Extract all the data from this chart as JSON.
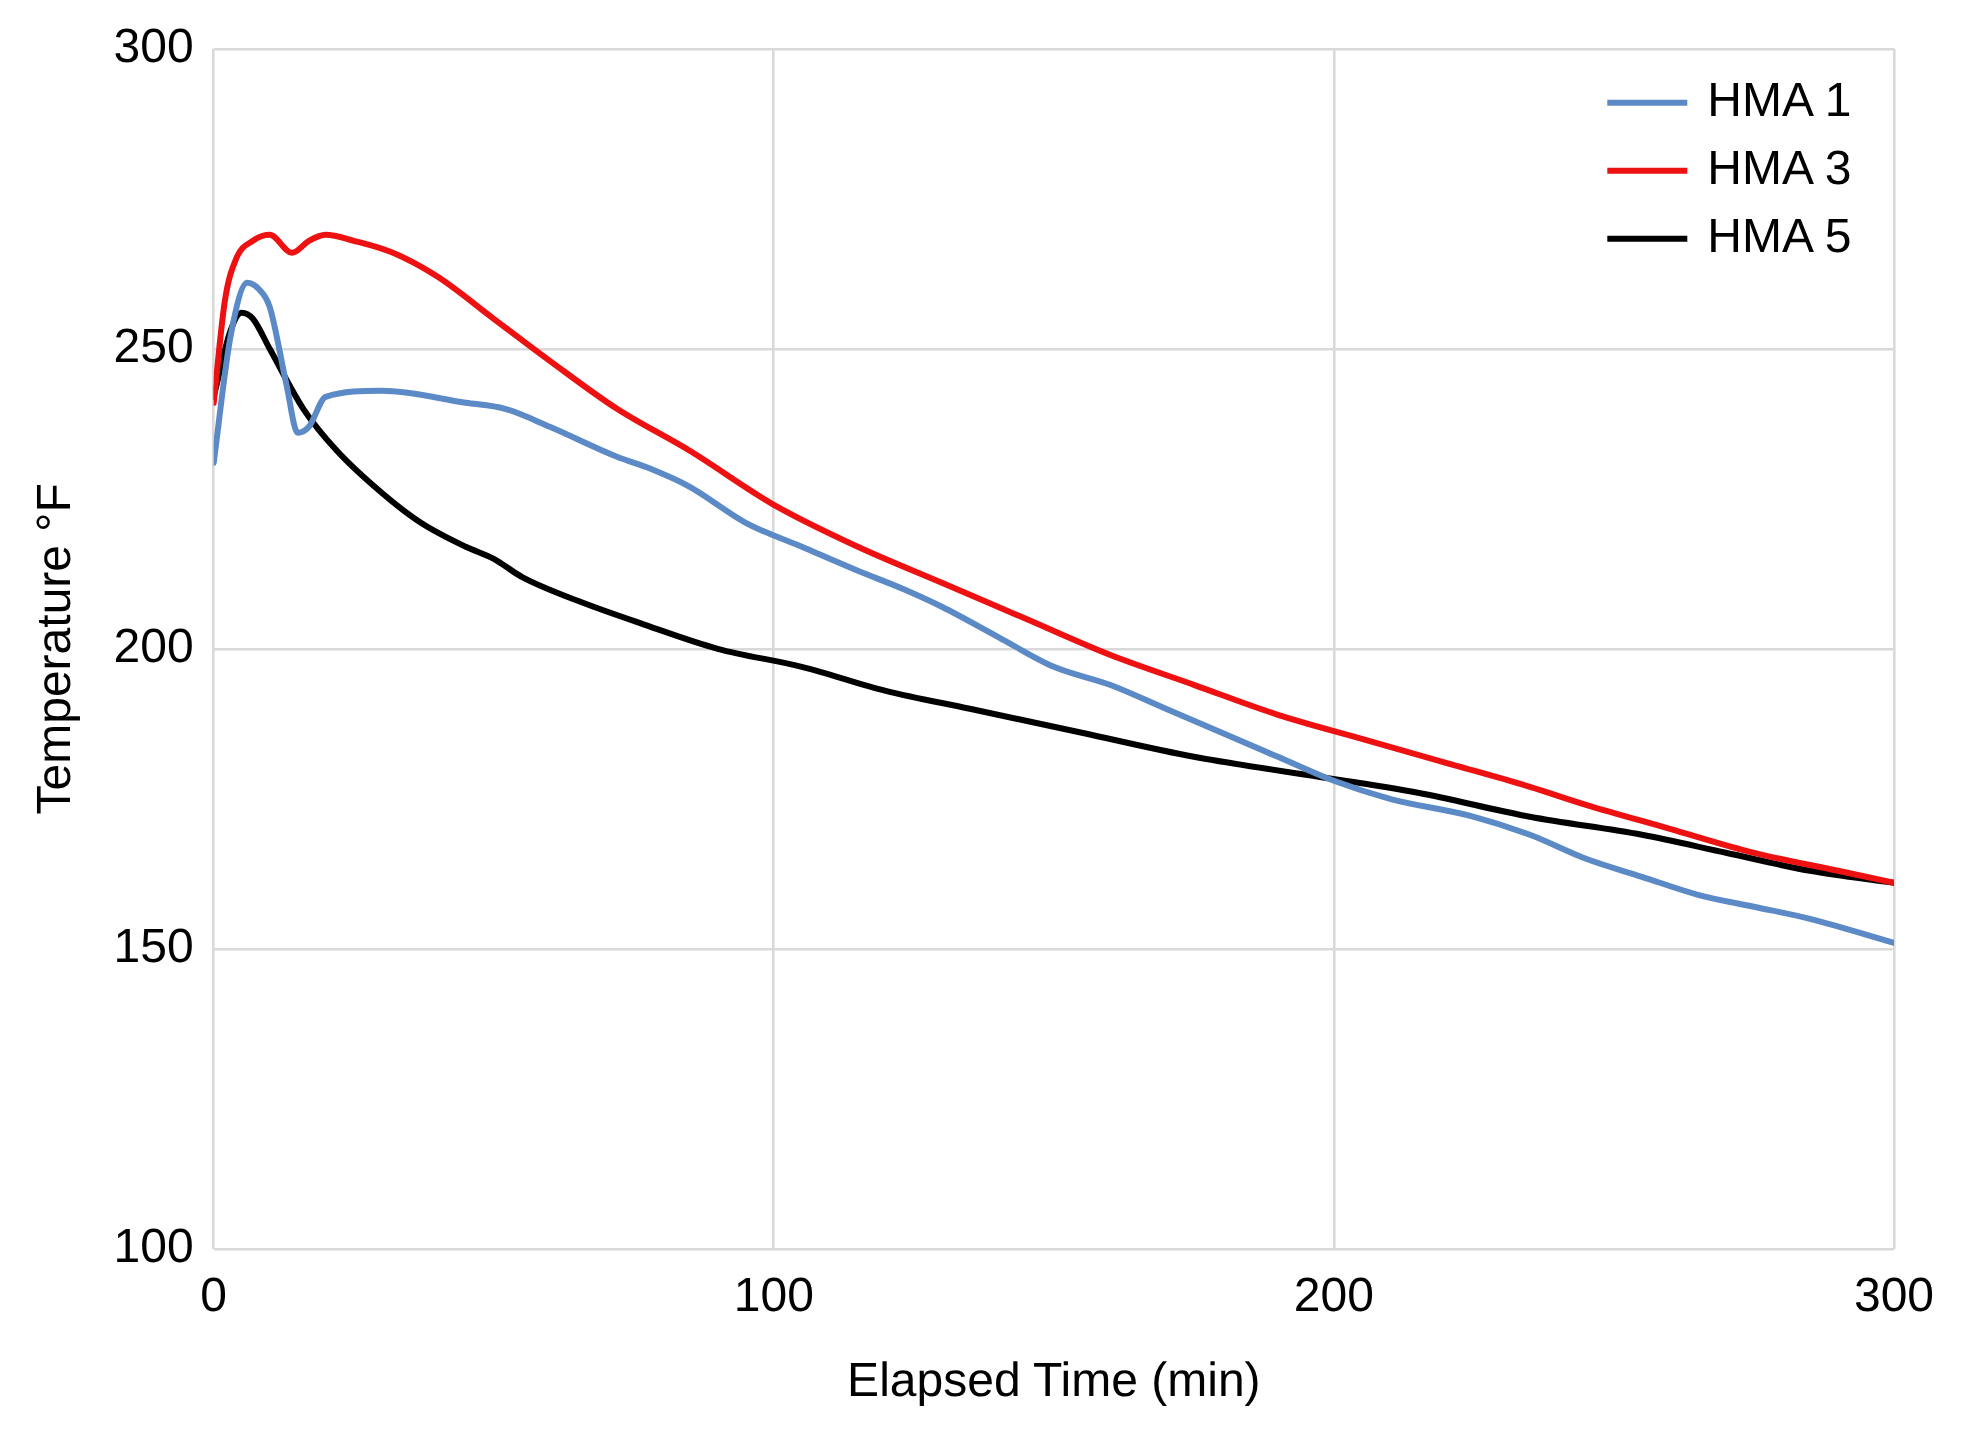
{
  "chart_data": {
    "type": "line",
    "xlabel": "Elapsed Time (min)",
    "ylabel": "Temperature °F",
    "xlim": [
      0,
      300
    ],
    "xticks": [
      0,
      100,
      200,
      300
    ],
    "ylim": [
      100,
      300
    ],
    "yticks": [
      100,
      150,
      200,
      250,
      300
    ],
    "grid": true,
    "legend": "top right",
    "marker": "none",
    "line_style": "solid",
    "series": [
      {
        "name": "HMA 1",
        "color": "#5b8ac6",
        "x": [
          0,
          3,
          6,
          8,
          10,
          13,
          15,
          17,
          20,
          30,
          45,
          52,
          60,
          72,
          78,
          85,
          95,
          105,
          115,
          123,
          130,
          140,
          150,
          160,
          170,
          180,
          190,
          200,
          210,
          225,
          235,
          245,
          255,
          265,
          275,
          285,
          300
        ],
        "values": [
          231,
          252,
          261,
          260,
          257,
          244,
          236,
          237,
          242,
          243,
          241,
          240,
          237,
          232,
          230,
          227,
          221,
          217,
          213,
          210,
          207,
          202,
          197,
          194,
          190,
          186,
          182,
          178,
          175,
          172,
          169,
          165,
          162,
          159,
          157,
          155,
          151
        ]
      },
      {
        "name": "HMA 3",
        "color": "#ee1111",
        "x": [
          0,
          2,
          4,
          7,
          10,
          14,
          17,
          20,
          25,
          32,
          40,
          50,
          60,
          72,
          85,
          100,
          115,
          130,
          145,
          160,
          175,
          190,
          205,
          220,
          235,
          245,
          260,
          275,
          290,
          300
        ],
        "values": [
          241,
          258,
          265,
          268,
          269,
          266,
          268,
          269,
          268,
          266,
          262,
          255,
          248,
          240,
          233,
          224,
          217,
          211,
          205,
          199,
          194,
          189,
          185,
          181,
          177,
          174,
          170,
          166,
          163,
          161
        ]
      },
      {
        "name": "HMA 5",
        "color": "#000000",
        "x": [
          0,
          3,
          5,
          7,
          10,
          16,
          22,
          30,
          37,
          45,
          50,
          55,
          65,
          77,
          90,
          105,
          120,
          135,
          155,
          175,
          195,
          215,
          235,
          255,
          270,
          285,
          300
        ],
        "values": [
          242,
          253,
          256,
          255,
          250,
          240,
          233,
          226,
          221,
          217,
          215,
          212,
          208,
          204,
          200,
          197,
          193,
          190,
          186,
          182,
          179,
          176,
          172,
          169,
          166,
          163,
          161
        ]
      }
    ]
  }
}
